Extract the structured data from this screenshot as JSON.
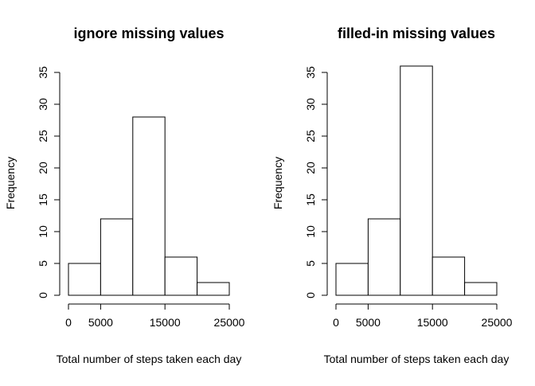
{
  "chart_data": [
    {
      "type": "bar",
      "title": "ignore missing values",
      "xlabel": "Total number of steps taken each day",
      "ylabel": "Frequency",
      "bins": [
        [
          0,
          5000
        ],
        [
          5000,
          10000
        ],
        [
          10000,
          15000
        ],
        [
          15000,
          20000
        ],
        [
          20000,
          25000
        ]
      ],
      "values": [
        5,
        12,
        28,
        6,
        2
      ],
      "xlim": [
        0,
        25000
      ],
      "ylim": [
        0,
        35
      ],
      "x_ticks": [
        0,
        5000,
        15000,
        25000
      ],
      "x_tick_labels": [
        "0",
        "5000",
        "15000",
        "25000"
      ],
      "y_ticks": [
        0,
        5,
        10,
        15,
        20,
        25,
        30,
        35
      ],
      "y_tick_labels": [
        "0",
        "5",
        "10",
        "15",
        "20",
        "25",
        "30",
        "35"
      ],
      "grid": false,
      "bar_fill": "#ffffff",
      "bar_stroke": "#000000"
    },
    {
      "type": "bar",
      "title": "filled-in missing values",
      "xlabel": "Total number of steps taken each day",
      "ylabel": "Frequency",
      "bins": [
        [
          0,
          5000
        ],
        [
          5000,
          10000
        ],
        [
          10000,
          15000
        ],
        [
          15000,
          20000
        ],
        [
          20000,
          25000
        ]
      ],
      "values": [
        5,
        12,
        36,
        6,
        2
      ],
      "xlim": [
        0,
        25000
      ],
      "ylim": [
        0,
        35
      ],
      "x_ticks": [
        0,
        5000,
        15000,
        25000
      ],
      "x_tick_labels": [
        "0",
        "5000",
        "15000",
        "25000"
      ],
      "y_ticks": [
        0,
        5,
        10,
        15,
        20,
        25,
        30,
        35
      ],
      "y_tick_labels": [
        "0",
        "5",
        "10",
        "15",
        "20",
        "25",
        "30",
        "35"
      ],
      "grid": false,
      "bar_fill": "#ffffff",
      "bar_stroke": "#000000"
    }
  ]
}
